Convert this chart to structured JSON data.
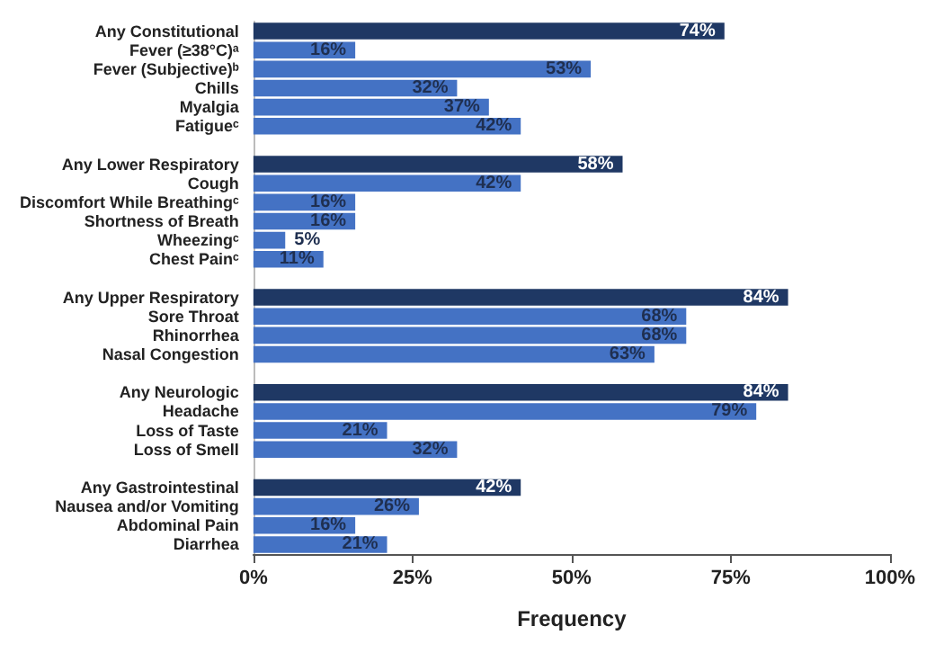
{
  "chart_data": {
    "type": "bar",
    "orientation": "horizontal",
    "xlabel": "Frequency",
    "categories": [
      "Any Constitutional",
      "Fever (≥38°C)ᵃ",
      "Fever (Subjective)ᵇ",
      "Chills",
      "Myalgia",
      "Fatigueᶜ",
      null,
      "Any Lower Respiratory",
      "Cough",
      "Discomfort While Breathingᶜ",
      "Shortness of Breath",
      "Wheezingᶜ",
      "Chest Painᶜ",
      null,
      "Any Upper Respiratory",
      "Sore Throat",
      "Rhinorrhea",
      "Nasal Congestion",
      null,
      "Any Neurologic",
      "Headache",
      "Loss of Taste",
      "Loss of Smell",
      null,
      "Any Gastrointestinal",
      "Nausea and/or Vomiting",
      "Abdominal Pain",
      "Diarrhea"
    ],
    "values": [
      74,
      16,
      53,
      32,
      37,
      42,
      null,
      58,
      42,
      16,
      16,
      5,
      11,
      null,
      84,
      68,
      68,
      63,
      null,
      84,
      79,
      21,
      32,
      null,
      42,
      26,
      16,
      21
    ],
    "value_labels": [
      "74%",
      "16%",
      "53%",
      "32%",
      "37%",
      "42%",
      null,
      "58%",
      "42%",
      "16%",
      "16%",
      "5%",
      "11%",
      null,
      "84%",
      "68%",
      "68%",
      "63%",
      null,
      "84%",
      "79%",
      "21%",
      "32%",
      null,
      "42%",
      "26%",
      "16%",
      "21%"
    ],
    "colors": [
      "#1f3864",
      "#4472c4",
      "#4472c4",
      "#4472c4",
      "#4472c4",
      "#4472c4",
      null,
      "#1f3864",
      "#4472c4",
      "#4472c4",
      "#4472c4",
      "#4472c4",
      "#4472c4",
      null,
      "#1f3864",
      "#4472c4",
      "#4472c4",
      "#4472c4",
      null,
      "#1f3864",
      "#4472c4",
      "#4472c4",
      "#4472c4",
      null,
      "#1f3864",
      "#4472c4",
      "#4472c4",
      "#4472c4"
    ],
    "xlim": [
      0,
      100
    ],
    "xticks": [
      {
        "value": 0,
        "label": "0%"
      },
      {
        "value": 25,
        "label": "25%"
      },
      {
        "value": 50,
        "label": "50%"
      },
      {
        "value": 75,
        "label": "75%"
      },
      {
        "value": 100,
        "label": "100%"
      }
    ],
    "grid": false
  }
}
